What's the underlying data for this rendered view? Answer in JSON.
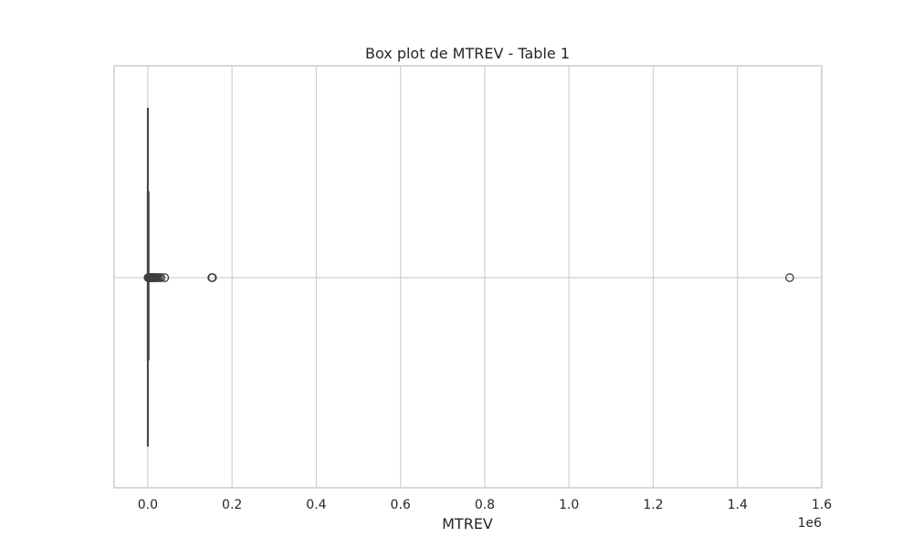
{
  "chart_data": {
    "type": "box",
    "title": "Box plot de MTREV - Table 1",
    "xlabel": "MTREV",
    "ylabel": "",
    "x_offset_label": "1e6",
    "orientation": "horizontal",
    "xlim": [
      -0.08,
      1.6
    ],
    "x_scale_factor": 1000000,
    "x_ticks": [
      0.0,
      0.2,
      0.4,
      0.6,
      0.8,
      1.0,
      1.2,
      1.4,
      1.6
    ],
    "x_tick_labels": [
      "0.0",
      "0.2",
      "0.4",
      "0.6",
      "0.8",
      "1.0",
      "1.2",
      "1.4",
      "1.6"
    ],
    "grid": true,
    "box": {
      "q1": 0,
      "median": 0,
      "q3": 100,
      "whisker_low": 0,
      "whisker_high": 500
    },
    "outliers": [
      800,
      1500,
      2200,
      3000,
      3800,
      4600,
      5500,
      6500,
      7500,
      9000,
      10500,
      12000,
      14000,
      16000,
      18000,
      20000,
      23000,
      27000,
      31000,
      40000,
      152000,
      153500,
      1524000
    ],
    "colors": {
      "grid": "#d0d0d0",
      "frame": "#cccccc",
      "box_line": "#3f3f3f",
      "outlier": "#3f3f3f"
    }
  }
}
